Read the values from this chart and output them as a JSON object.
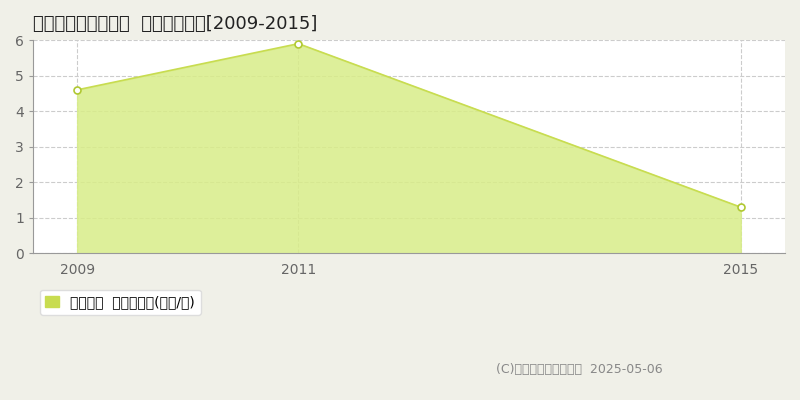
{
  "title": "中新川郡立山町宮路  土地価格推移[2009-2015]",
  "years": [
    2009,
    2011,
    2015
  ],
  "values": [
    4.6,
    5.9,
    1.3
  ],
  "ylim": [
    0,
    6
  ],
  "xlim": [
    2008.6,
    2015.4
  ],
  "yticks": [
    0,
    1,
    2,
    3,
    4,
    5,
    6
  ],
  "xticks": [
    2009,
    2011,
    2015
  ],
  "line_color": "#c8dc50",
  "fill_color": "#d8ed88",
  "fill_alpha": 0.85,
  "marker_color": "#ffffff",
  "marker_edge_color": "#b0c832",
  "grid_color": "#cccccc",
  "figure_bg_color": "#f0f0e8",
  "plot_bg_color": "#ffffff",
  "legend_label": "土地価格  平均坪単価(万円/坪)",
  "copyright_text": "(C)土地価格ドットコム  2025-05-06",
  "title_fontsize": 13,
  "legend_fontsize": 10,
  "axis_fontsize": 10,
  "copyright_fontsize": 9,
  "spine_color": "#999999",
  "tick_color": "#666666"
}
